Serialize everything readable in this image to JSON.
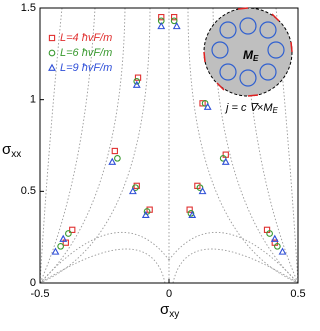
{
  "chart_data": {
    "type": "scatter",
    "x_label": {
      "text": "σ",
      "subscript": "xy"
    },
    "y_label": {
      "text": "σ",
      "subscript": "xx"
    },
    "xlim": [
      -0.5,
      0.5
    ],
    "ylim": [
      0,
      1.5
    ],
    "xticks": [
      -0.5,
      0,
      0.5
    ],
    "yticks": [
      0,
      0.5,
      1,
      1.5
    ],
    "legend": "top-left",
    "series": [
      {
        "name": "L=4 ħvF/m",
        "color": "#e03030",
        "marker": "square",
        "x": [
          -0.03,
          0.02,
          -0.12,
          0.13,
          -0.21,
          0.22,
          -0.125,
          0.11,
          -0.075,
          0.08,
          -0.375,
          0.38,
          -0.4,
          0.41
        ],
        "values": [
          1.45,
          1.45,
          1.12,
          0.98,
          0.72,
          0.7,
          0.53,
          0.53,
          0.4,
          0.4,
          0.29,
          0.29,
          0.22,
          0.22
        ]
      },
      {
        "name": "L=6 ħvF/m",
        "color": "#3a9a30",
        "marker": "circle",
        "x": [
          -0.03,
          0.02,
          -0.125,
          0.14,
          -0.2,
          0.21,
          -0.13,
          0.12,
          -0.085,
          0.085,
          -0.39,
          0.39,
          -0.42,
          0.42
        ],
        "values": [
          1.43,
          1.43,
          1.1,
          0.98,
          0.68,
          0.68,
          0.52,
          0.52,
          0.39,
          0.38,
          0.27,
          0.27,
          0.2,
          0.2
        ]
      },
      {
        "name": "L=9 ħvF/m",
        "color": "#3050d8",
        "marker": "triangle",
        "x": [
          -0.03,
          0.03,
          -0.125,
          0.15,
          -0.22,
          0.22,
          -0.14,
          0.13,
          -0.09,
          0.09,
          -0.41,
          0.41,
          -0.44,
          0.44
        ],
        "values": [
          1.4,
          1.4,
          1.08,
          0.96,
          0.66,
          0.66,
          0.5,
          0.5,
          0.37,
          0.37,
          0.24,
          0.24,
          0.17,
          0.17
        ]
      }
    ],
    "annotations": {
      "inset_symbol": "M",
      "inset_subscript": "E",
      "formula": "j = c ∇×M",
      "formula_subscript": "E"
    }
  }
}
